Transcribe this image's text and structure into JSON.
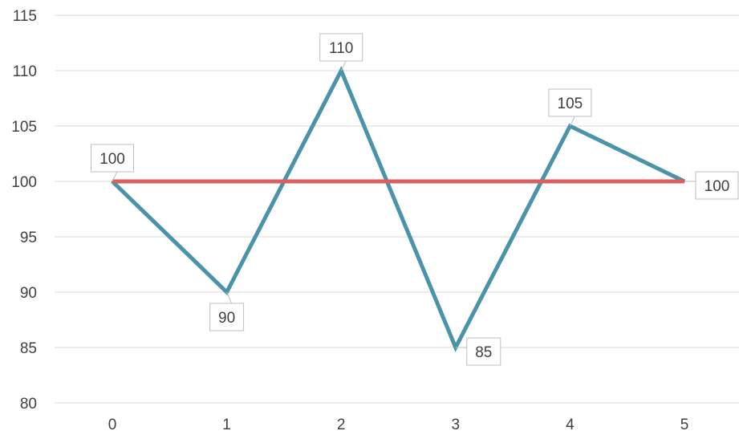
{
  "chart_data": {
    "type": "line",
    "x": [
      0,
      1,
      2,
      3,
      4,
      5
    ],
    "x_tick_labels": [
      "0",
      "1",
      "2",
      "3",
      "4",
      "5"
    ],
    "y_tick_labels": [
      "80",
      "85",
      "90",
      "95",
      "100",
      "105",
      "110",
      "115"
    ],
    "ylim": [
      80,
      115
    ],
    "grid": true,
    "series": [
      {
        "color": "#4a93a8",
        "values": [
          100,
          90,
          110,
          85,
          105,
          100
        ],
        "data_labels": [
          "100",
          "90",
          "110",
          "85",
          "105",
          "100"
        ],
        "label_positions": [
          "above",
          "below",
          "above",
          "right",
          "above",
          "right"
        ]
      },
      {
        "color": "#d9605e",
        "values": [
          100,
          100,
          100,
          100,
          100,
          100
        ]
      }
    ]
  }
}
